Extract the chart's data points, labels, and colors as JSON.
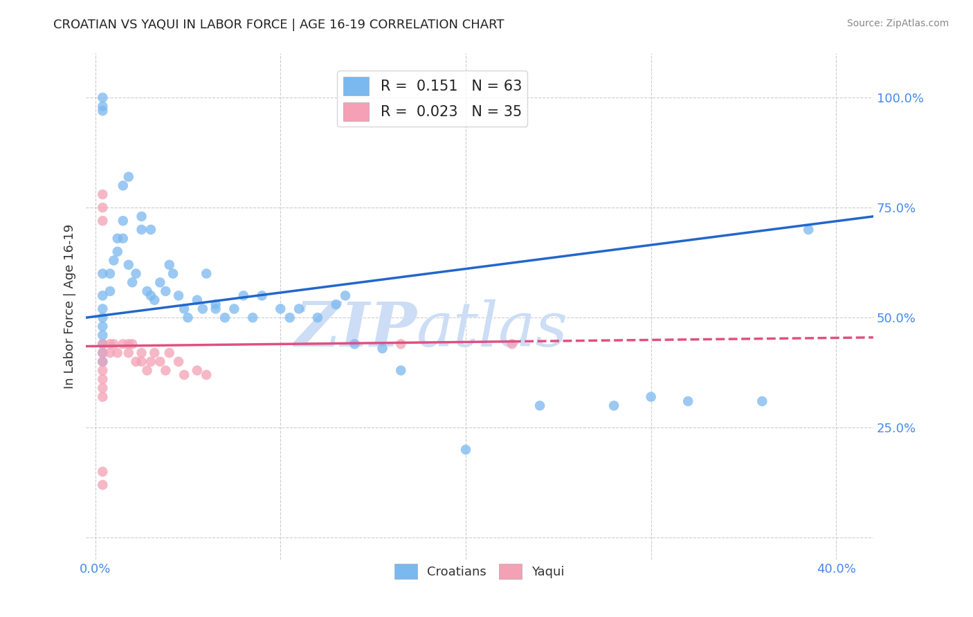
{
  "title": "CROATIAN VS YAQUI IN LABOR FORCE | AGE 16-19 CORRELATION CHART",
  "source": "Source: ZipAtlas.com",
  "ylabel": "In Labor Force | Age 16-19",
  "x_ticks": [
    0.0,
    0.1,
    0.2,
    0.3,
    0.4
  ],
  "x_tick_labels": [
    "0.0%",
    "",
    "",
    "",
    "40.0%"
  ],
  "y_ticks": [
    0.0,
    0.25,
    0.5,
    0.75,
    1.0
  ],
  "y_tick_labels": [
    "",
    "25.0%",
    "50.0%",
    "75.0%",
    "100.0%"
  ],
  "xlim": [
    -0.005,
    0.42
  ],
  "ylim": [
    -0.05,
    1.1
  ],
  "croatian_R": 0.151,
  "croatian_N": 63,
  "yaqui_R": 0.023,
  "yaqui_N": 35,
  "croatian_color": "#7ab8f0",
  "yaqui_color": "#f4a0b5",
  "trendline_croatian_color": "#2266cc",
  "trendline_yaqui_color": "#e05080",
  "watermark_zip": "ZIP",
  "watermark_atlas": "atlas",
  "watermark_color": "#ccddf5",
  "croatian_x": [
    0.004,
    0.004,
    0.004,
    0.004,
    0.004,
    0.004,
    0.004,
    0.004,
    0.004,
    0.004,
    0.004,
    0.004,
    0.008,
    0.008,
    0.01,
    0.012,
    0.012,
    0.015,
    0.015,
    0.018,
    0.02,
    0.022,
    0.025,
    0.025,
    0.028,
    0.03,
    0.03,
    0.032,
    0.035,
    0.038,
    0.04,
    0.042,
    0.045,
    0.048,
    0.05,
    0.055,
    0.058,
    0.06,
    0.065,
    0.07,
    0.075,
    0.08,
    0.085,
    0.09,
    0.1,
    0.105,
    0.11,
    0.12,
    0.13,
    0.135,
    0.14,
    0.155,
    0.165,
    0.2,
    0.24,
    0.28,
    0.3,
    0.32,
    0.36,
    0.385,
    0.015,
    0.018,
    0.065
  ],
  "croatian_y": [
    1.0,
    0.98,
    0.97,
    0.6,
    0.55,
    0.52,
    0.5,
    0.48,
    0.46,
    0.44,
    0.42,
    0.4,
    0.6,
    0.56,
    0.63,
    0.68,
    0.65,
    0.72,
    0.68,
    0.62,
    0.58,
    0.6,
    0.73,
    0.7,
    0.56,
    0.7,
    0.55,
    0.54,
    0.58,
    0.56,
    0.62,
    0.6,
    0.55,
    0.52,
    0.5,
    0.54,
    0.52,
    0.6,
    0.53,
    0.5,
    0.52,
    0.55,
    0.5,
    0.55,
    0.52,
    0.5,
    0.52,
    0.5,
    0.53,
    0.55,
    0.44,
    0.43,
    0.38,
    0.2,
    0.3,
    0.3,
    0.32,
    0.31,
    0.31,
    0.7,
    0.8,
    0.82,
    0.52
  ],
  "yaqui_x": [
    0.004,
    0.004,
    0.004,
    0.004,
    0.004,
    0.004,
    0.004,
    0.004,
    0.004,
    0.008,
    0.008,
    0.01,
    0.012,
    0.015,
    0.018,
    0.018,
    0.02,
    0.022,
    0.025,
    0.025,
    0.028,
    0.03,
    0.032,
    0.035,
    0.038,
    0.04,
    0.045,
    0.048,
    0.055,
    0.06,
    0.165,
    0.225,
    0.004,
    0.004,
    0.004
  ],
  "yaqui_y": [
    0.44,
    0.42,
    0.4,
    0.38,
    0.36,
    0.34,
    0.32,
    0.15,
    0.12,
    0.44,
    0.42,
    0.44,
    0.42,
    0.44,
    0.44,
    0.42,
    0.44,
    0.4,
    0.42,
    0.4,
    0.38,
    0.4,
    0.42,
    0.4,
    0.38,
    0.42,
    0.4,
    0.37,
    0.38,
    0.37,
    0.44,
    0.44,
    0.78,
    0.75,
    0.72
  ],
  "legend_labels": [
    "Croatians",
    "Yaqui"
  ],
  "background_color": "#ffffff",
  "grid_color": "#cccccc"
}
